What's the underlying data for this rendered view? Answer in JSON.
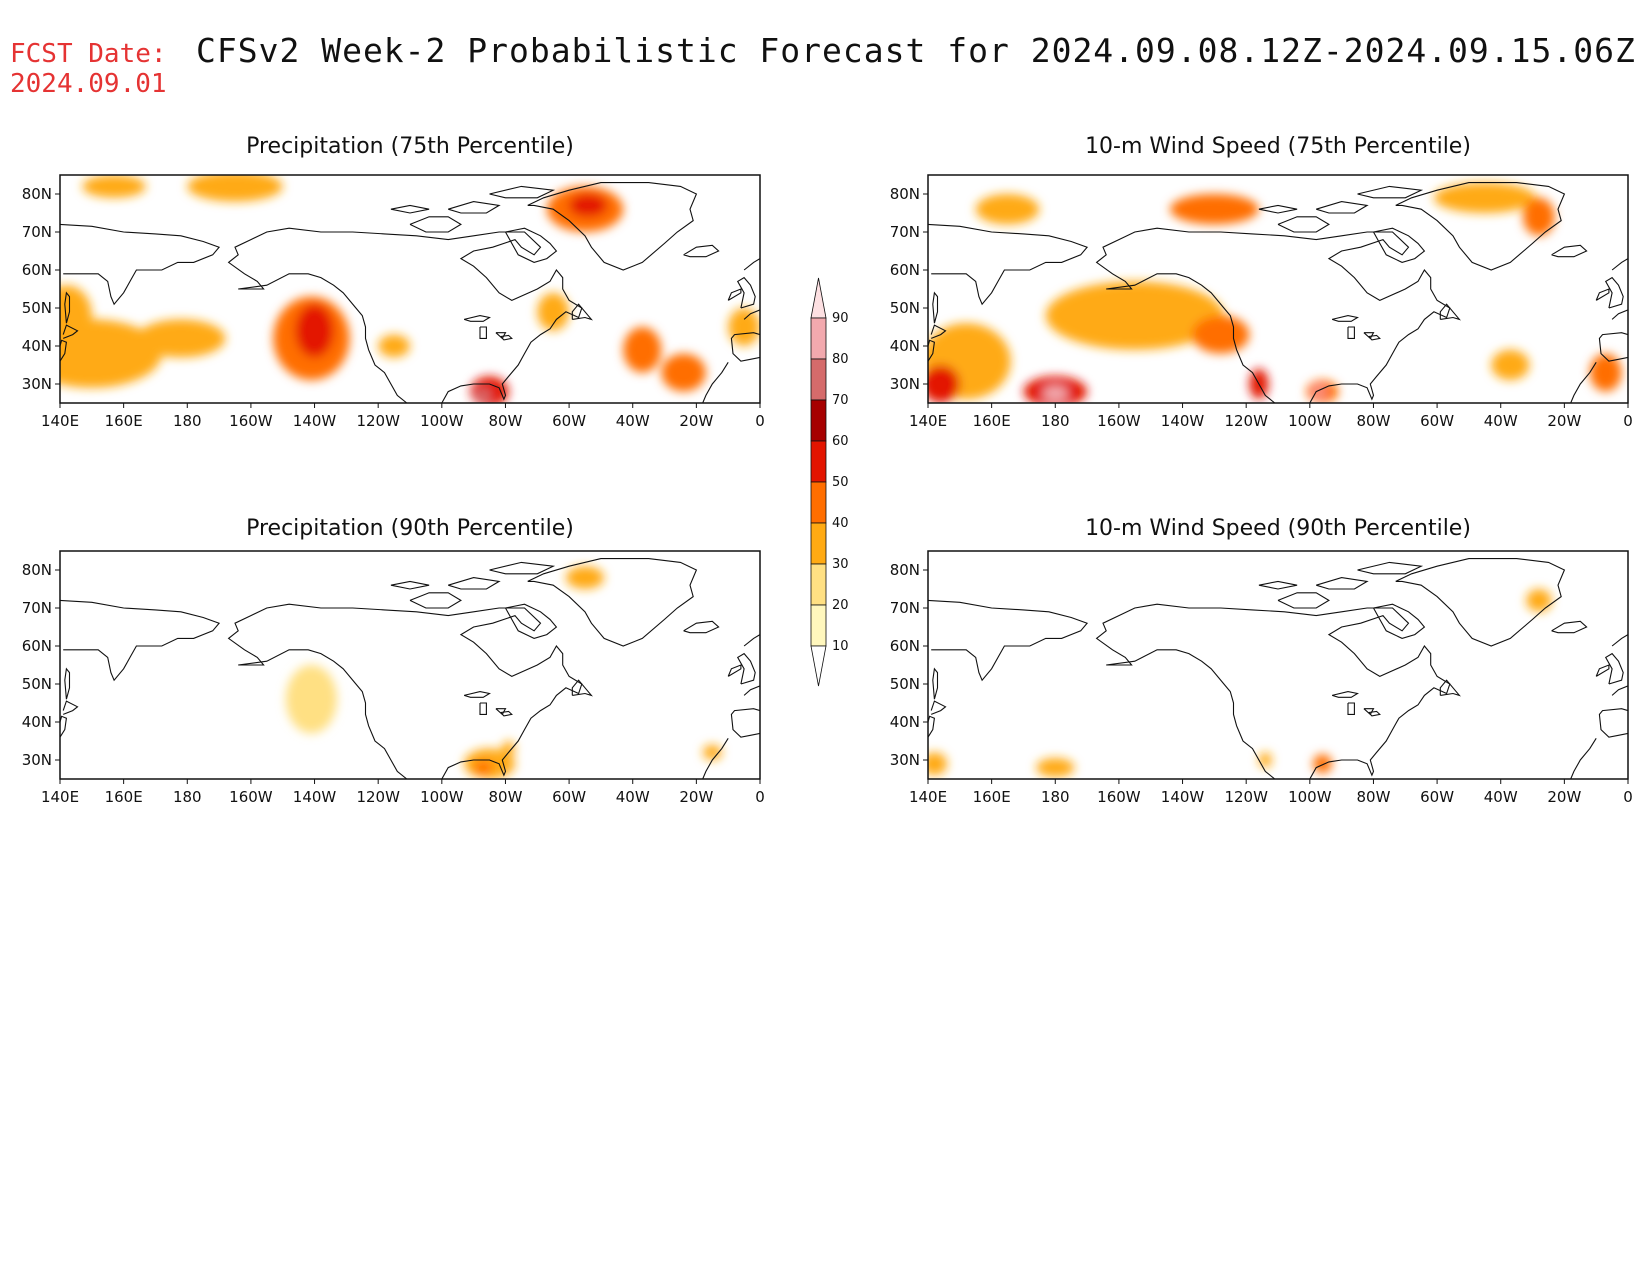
{
  "header": {
    "fcst_label": "FCST Date:",
    "fcst_date": "2024.09.01",
    "title": "CFSv2 Week-2 Probabilistic Forecast for 2024.09.08.12Z-2024.09.15.06Z"
  },
  "axes": {
    "lon_labels": [
      "140E",
      "160E",
      "180",
      "160W",
      "140W",
      "120W",
      "100W",
      "80W",
      "60W",
      "40W",
      "20W",
      "0"
    ],
    "lat_labels": [
      "80N",
      "70N",
      "60N",
      "50N",
      "40N",
      "30N"
    ]
  },
  "colorbar": {
    "levels": [
      "10",
      "20",
      "30",
      "40",
      "50",
      "60",
      "70",
      "80",
      "90"
    ],
    "colors": [
      "#ffffff",
      "#fff7bd",
      "#ffe083",
      "#ffaa13",
      "#ff6e00",
      "#e31500",
      "#a60000",
      "#d56b6b",
      "#f2a9ae",
      "#fde0e2"
    ]
  },
  "panels": [
    {
      "id": "precip75",
      "title": "Precipitation (75th Percentile)",
      "blobs": [
        {
          "lon": 150,
          "lat": 38,
          "rx": 22,
          "ry": 9,
          "level": 3
        },
        {
          "lon": 178,
          "lat": 42,
          "rx": 14,
          "ry": 5,
          "level": 3
        },
        {
          "lon": 142,
          "lat": 48,
          "rx": 8,
          "ry": 8,
          "level": 3
        },
        {
          "lon": 219,
          "lat": 42,
          "rx": 12,
          "ry": 11,
          "level": 4
        },
        {
          "lon": 220,
          "lat": 44,
          "rx": 6,
          "ry": 7,
          "level": 5
        },
        {
          "lon": 195,
          "lat": 82,
          "rx": 15,
          "ry": 4,
          "level": 3
        },
        {
          "lon": 157,
          "lat": 82,
          "rx": 10,
          "ry": 3,
          "level": 3
        },
        {
          "lon": 305,
          "lat": 76,
          "rx": 12,
          "ry": 6,
          "level": 4
        },
        {
          "lon": 306,
          "lat": 77,
          "rx": 6,
          "ry": 3,
          "level": 5
        },
        {
          "lon": 275,
          "lat": 28,
          "rx": 6,
          "ry": 4,
          "level": 5
        },
        {
          "lon": 273,
          "lat": 27,
          "rx": 2.5,
          "ry": 1.8,
          "level": 7
        },
        {
          "lon": 323,
          "lat": 39,
          "rx": 6,
          "ry": 6,
          "level": 4
        },
        {
          "lon": 336,
          "lat": 33,
          "rx": 7,
          "ry": 5,
          "level": 4
        },
        {
          "lon": 295,
          "lat": 49,
          "rx": 5,
          "ry": 5,
          "level": 3
        },
        {
          "lon": 245,
          "lat": 40,
          "rx": 5,
          "ry": 3,
          "level": 3
        },
        {
          "lon": 355,
          "lat": 45,
          "rx": 5,
          "ry": 5,
          "level": 3
        }
      ]
    },
    {
      "id": "wind75",
      "title": "10-m Wind Speed (75th Percentile)",
      "blobs": [
        {
          "lon": 205,
          "lat": 48,
          "rx": 28,
          "ry": 9,
          "level": 3
        },
        {
          "lon": 232,
          "lat": 43,
          "rx": 9,
          "ry": 5,
          "level": 4
        },
        {
          "lon": 152,
          "lat": 36,
          "rx": 14,
          "ry": 10,
          "level": 3
        },
        {
          "lon": 144,
          "lat": 30,
          "rx": 6,
          "ry": 5,
          "level": 5
        },
        {
          "lon": 180,
          "lat": 28,
          "rx": 10,
          "ry": 4,
          "level": 5
        },
        {
          "lon": 180,
          "lat": 27.5,
          "rx": 4,
          "ry": 2,
          "level": 8
        },
        {
          "lon": 230,
          "lat": 76,
          "rx": 14,
          "ry": 4,
          "level": 4
        },
        {
          "lon": 165,
          "lat": 76,
          "rx": 10,
          "ry": 4,
          "level": 3
        },
        {
          "lon": 315,
          "lat": 79,
          "rx": 16,
          "ry": 4,
          "level": 3
        },
        {
          "lon": 332,
          "lat": 74,
          "rx": 5,
          "ry": 5,
          "level": 4
        },
        {
          "lon": 244,
          "lat": 30,
          "rx": 3,
          "ry": 4,
          "level": 5
        },
        {
          "lon": 264,
          "lat": 28,
          "rx": 5,
          "ry": 3,
          "level": 4
        },
        {
          "lon": 263,
          "lat": 28,
          "rx": 1.5,
          "ry": 1.2,
          "level": 8
        },
        {
          "lon": 353,
          "lat": 33,
          "rx": 5,
          "ry": 5,
          "level": 4
        },
        {
          "lon": 323,
          "lat": 35,
          "rx": 6,
          "ry": 4,
          "level": 3
        }
      ]
    },
    {
      "id": "precip90",
      "title": "Precipitation (90th Percentile)",
      "blobs": [
        {
          "lon": 219,
          "lat": 46,
          "rx": 8,
          "ry": 9,
          "level": 2
        },
        {
          "lon": 275,
          "lat": 29,
          "rx": 8,
          "ry": 4,
          "level": 3
        },
        {
          "lon": 273,
          "lat": 28,
          "rx": 3,
          "ry": 1.8,
          "level": 4
        },
        {
          "lon": 281,
          "lat": 33,
          "rx": 2,
          "ry": 2,
          "level": 3
        },
        {
          "lon": 305,
          "lat": 78,
          "rx": 6,
          "ry": 3,
          "level": 3
        },
        {
          "lon": 345,
          "lat": 32,
          "rx": 3,
          "ry": 2,
          "level": 3
        }
      ]
    },
    {
      "id": "wind90",
      "title": "10-m Wind Speed (90th Percentile)",
      "blobs": [
        {
          "lon": 180,
          "lat": 28,
          "rx": 6,
          "ry": 2.5,
          "level": 3
        },
        {
          "lon": 142,
          "lat": 29,
          "rx": 4,
          "ry": 3,
          "level": 3
        },
        {
          "lon": 264,
          "lat": 29,
          "rx": 3,
          "ry": 2.5,
          "level": 4
        },
        {
          "lon": 332,
          "lat": 72,
          "rx": 4,
          "ry": 3,
          "level": 3
        },
        {
          "lon": 246,
          "lat": 30,
          "rx": 2,
          "ry": 2,
          "level": 3
        }
      ]
    }
  ]
}
